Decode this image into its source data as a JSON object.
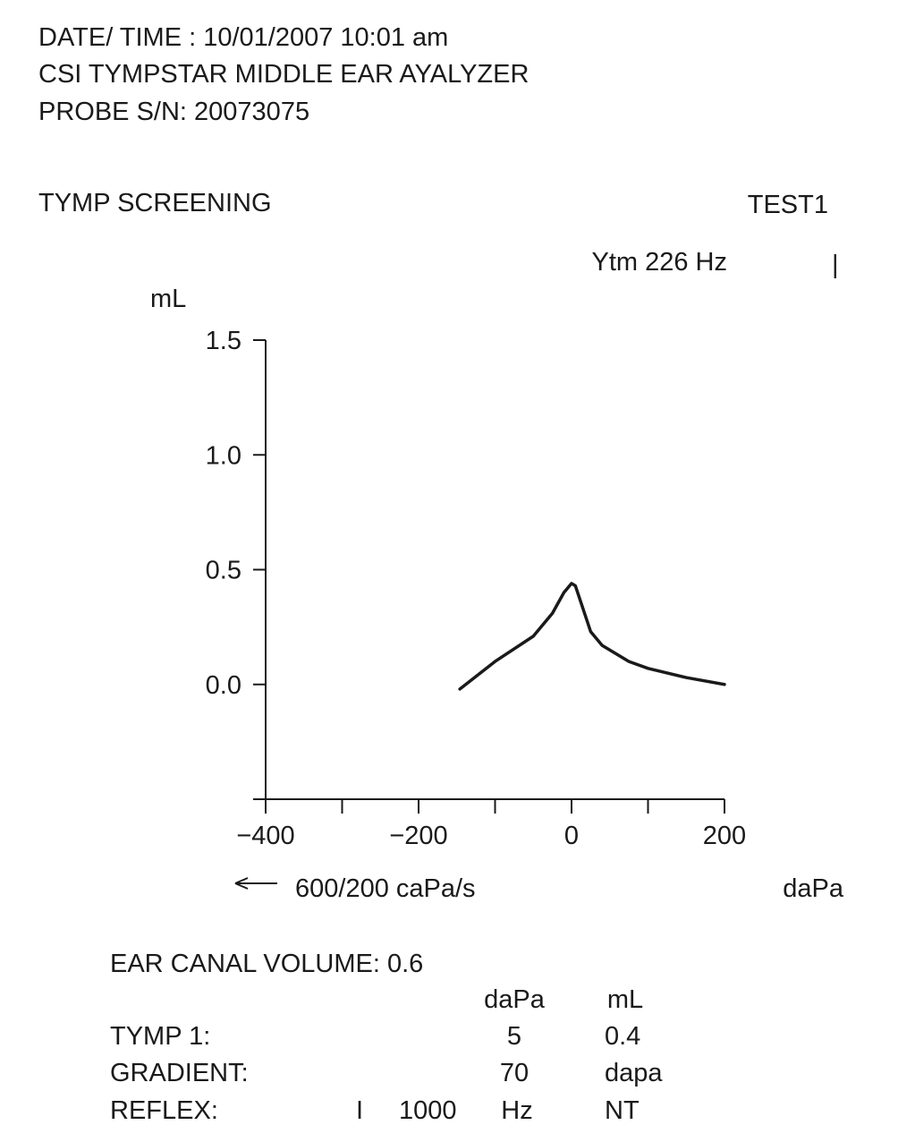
{
  "header": {
    "date_time": "DATE/ TIME : 10/01/2007 10:01 am",
    "device": "CSI TYMPSTAR MIDDLE EAR AYALYZER",
    "probe": "PROBE S/N: 20073075"
  },
  "screening": {
    "title": "TYMP SCREENING",
    "test": "TEST1",
    "marker": "|"
  },
  "chart_data": {
    "type": "line",
    "subtitle": "Ytm 226 Hz",
    "y_label": "mL",
    "x_label": "daPa",
    "rate_label": "600/200 caPa/s",
    "x": [
      -146,
      -100,
      -50,
      -25,
      -10,
      0,
      5,
      15,
      25,
      40,
      75,
      100,
      150,
      200
    ],
    "values": [
      -0.02,
      0.1,
      0.21,
      0.31,
      0.4,
      0.44,
      0.43,
      0.33,
      0.23,
      0.17,
      0.1,
      0.07,
      0.03,
      0
    ],
    "color": "#1a1a1a",
    "xlim": [
      -400,
      200
    ],
    "ylim": [
      -0.5,
      1.5
    ],
    "xticks": [
      {
        "value": -400,
        "label": "−400"
      },
      {
        "value": -200,
        "label": "−200"
      },
      0,
      200
    ],
    "xminorticks": [
      -300,
      -100,
      100
    ],
    "yticks": [
      {
        "value": 0,
        "label": "0.0"
      },
      0.5,
      {
        "value": 1,
        "label": "1.0"
      },
      1.5
    ]
  },
  "results": {
    "ear_canal_volume": "EAR CANAL VOLUME: 0.6",
    "columns": [
      "daPa",
      "mL"
    ],
    "rows": [
      [
        "TYMP 1:",
        "5",
        "0.4"
      ],
      [
        "GRADIENT:",
        "70",
        "dapa"
      ],
      [
        "REFLEX:",
        "I",
        "1000",
        "Hz",
        "NT"
      ]
    ]
  }
}
